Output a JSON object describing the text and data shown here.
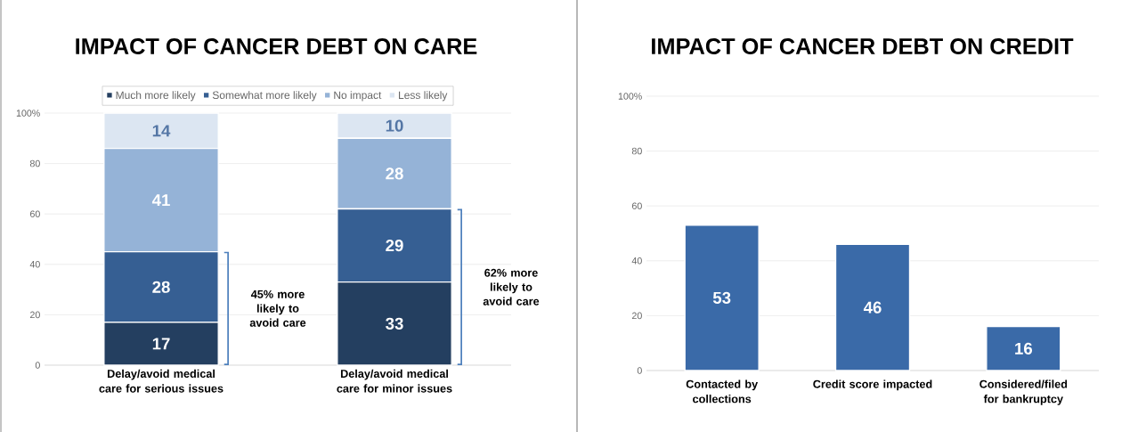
{
  "chart_data": [
    {
      "type": "bar",
      "title": "IMPACT OF CANCER DEBT ON CARE",
      "stacked": true,
      "categories": [
        "Delay/avoid medical care for serious issues",
        "Delay/avoid medical care for minor issues"
      ],
      "series": [
        {
          "name": "Much more likely",
          "color": "#243f60",
          "values": [
            17,
            33
          ]
        },
        {
          "name": "Somewhat more likely",
          "color": "#365f93",
          "values": [
            28,
            29
          ]
        },
        {
          "name": "No impact",
          "color": "#95b3d7",
          "values": [
            41,
            28
          ]
        },
        {
          "name": "Less likely",
          "color": "#dce6f2",
          "values": [
            14,
            10
          ]
        }
      ],
      "ylim": [
        0,
        100
      ],
      "yticks": [
        0,
        20,
        40,
        60,
        80,
        {
          "value": 100,
          "label": "100%"
        }
      ],
      "grid": "y",
      "legend": "top",
      "data_labels": true,
      "annotations": [
        "45% more likely to avoid care",
        "62% more likely to avoid care"
      ]
    },
    {
      "type": "bar",
      "title": "IMPACT OF CANCER DEBT ON CREDIT",
      "categories": [
        "Contacted by collections",
        "Credit score impacted",
        "Considered/filed for bankruptcy"
      ],
      "values": [
        53,
        46,
        16
      ],
      "color": "#3a6aa8",
      "ylim": [
        0,
        100
      ],
      "yticks": [
        0,
        20,
        40,
        60,
        80,
        {
          "value": 100,
          "label": "100%"
        }
      ],
      "grid": "y",
      "data_labels": true
    }
  ]
}
